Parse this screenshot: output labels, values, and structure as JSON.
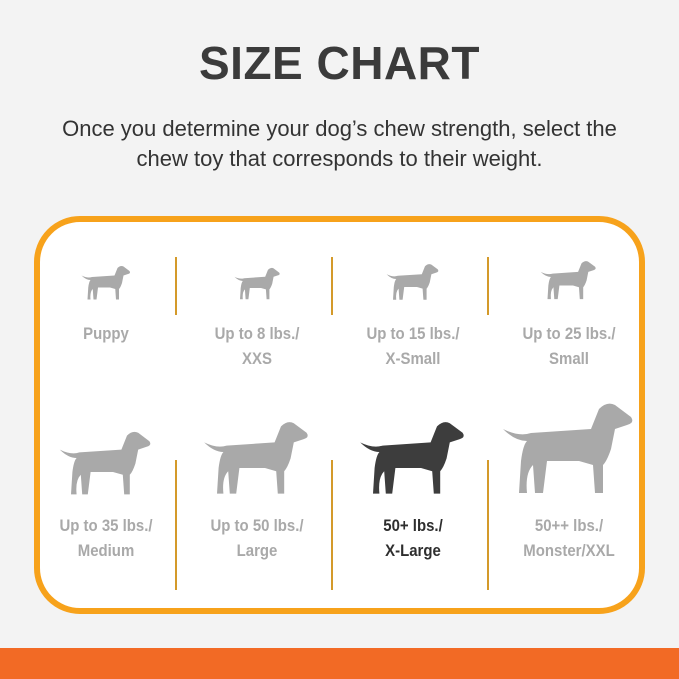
{
  "title": "SIZE CHART",
  "subtitle_line1": "Once you determine your dog’s chew strength, select the",
  "subtitle_line2": "chew toy that corresponds to their weight.",
  "colors": {
    "border": "#f7a21b",
    "band": "#f26a25",
    "inactive": "#a9a9a9",
    "active": "#3d3d3d"
  },
  "sizes": [
    {
      "icon": "puppy-icon",
      "line1": "Puppy",
      "line2": ""
    },
    {
      "icon": "chihuahua-icon",
      "line1": "Up to 8 lbs./",
      "line2": "XXS"
    },
    {
      "icon": "small-terrier-icon",
      "line1": "Up to 15 lbs./",
      "line2": "X-Small"
    },
    {
      "icon": "westie-icon",
      "line1": "Up to 25 lbs./",
      "line2": "Small"
    },
    {
      "icon": "beagle-icon",
      "line1": "Up to 35 lbs./",
      "line2": "Medium"
    },
    {
      "icon": "labrador-icon",
      "line1": "Up to 50 lbs./",
      "line2": "Large"
    },
    {
      "icon": "german-shepherd-icon",
      "line1": "50+ lbs./",
      "line2": "X-Large",
      "selected": true
    },
    {
      "icon": "great-dane-icon",
      "line1": "50++ lbs./",
      "line2": "Monster/XXL"
    }
  ]
}
